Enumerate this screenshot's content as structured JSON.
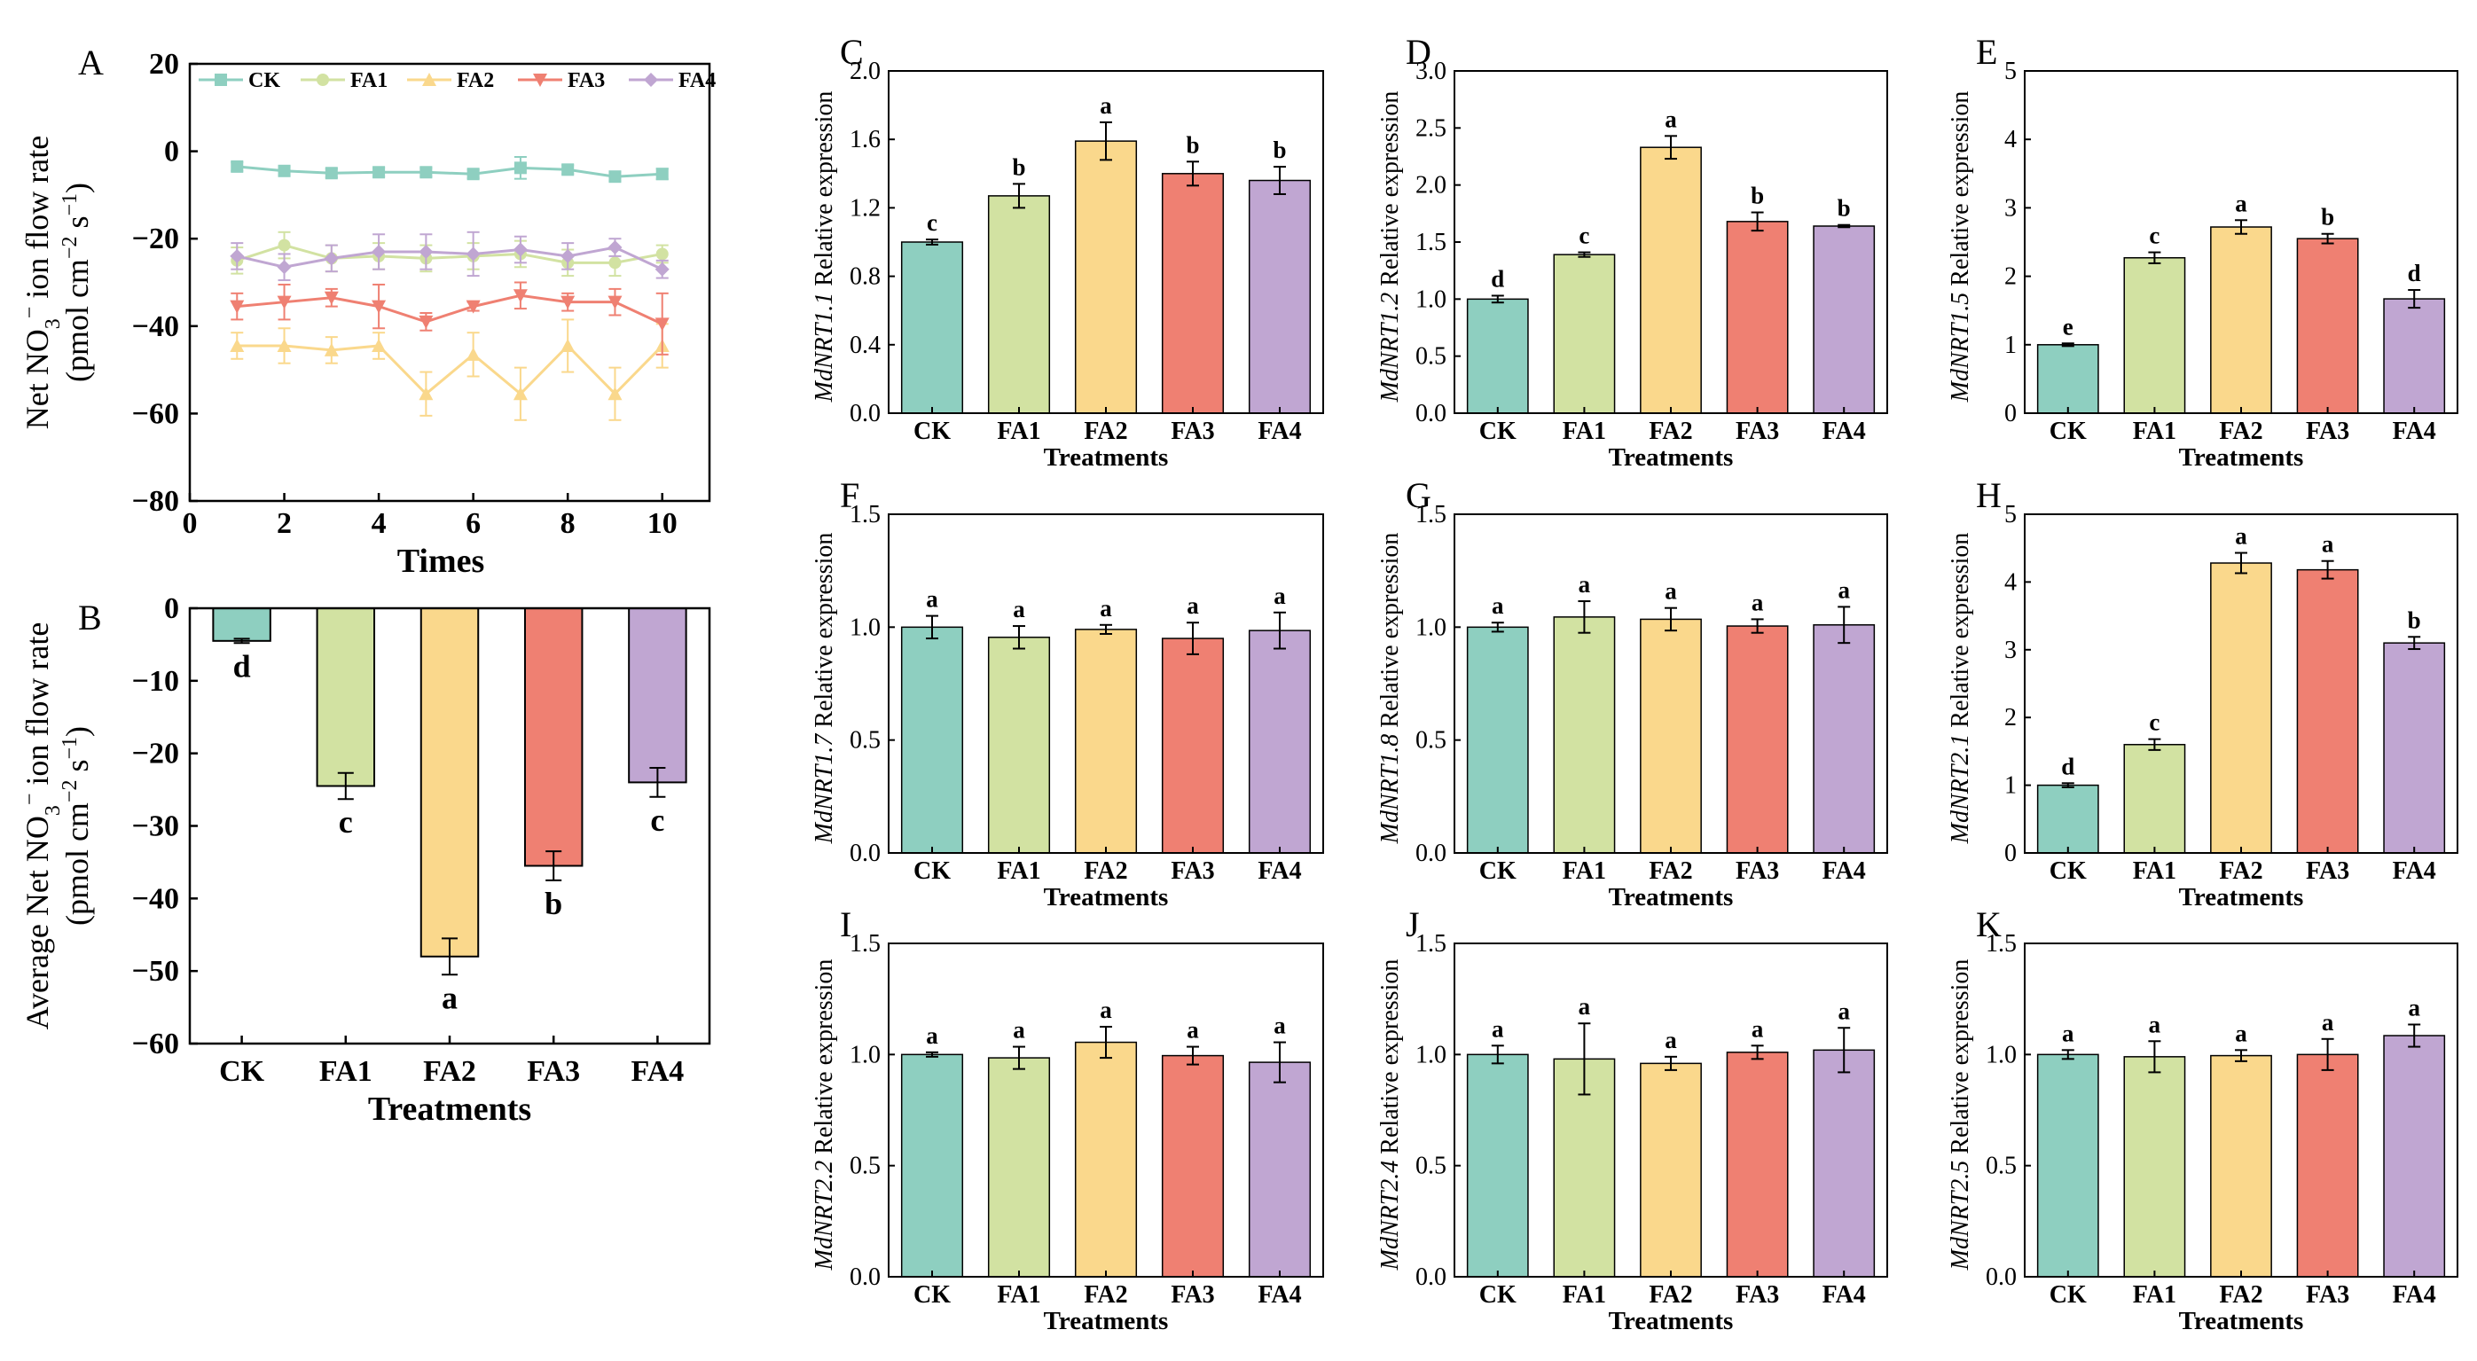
{
  "colors": {
    "CK": "#8ecfc0",
    "FA1": "#d2e2a2",
    "FA2": "#fad88c",
    "FA3": "#ef8072",
    "FA4": "#c0a6d2",
    "axis": "#000000"
  },
  "chart_data": [
    {
      "id": "A",
      "type": "line",
      "panel_label": "A",
      "xlabel": "Times",
      "ylabel_parts": {
        "l1": "Net NO",
        "sub": "3",
        "sup": "−",
        "l1_tail": " ion flow rate",
        "l2_pre": "(pmol cm",
        "sup2": "−2",
        "l2_mid": " s",
        "sup3": "−1",
        "l2_tail": ")"
      },
      "x": [
        1,
        2,
        3,
        4,
        5,
        6,
        7,
        8,
        9,
        10
      ],
      "xticks": [
        0,
        2,
        4,
        6,
        8,
        10
      ],
      "ylim": [
        -80,
        20
      ],
      "yticks": [
        20,
        0,
        -20,
        -40,
        -60,
        -80
      ],
      "series": [
        {
          "name": "CK",
          "values": [
            -3.5,
            -4.5,
            -5,
            -4.8,
            -4.8,
            -5.2,
            -3.8,
            -4.2,
            -5.8,
            -5.2
          ],
          "errors": [
            1,
            1,
            1,
            1,
            1,
            1,
            2.5,
            1,
            1,
            1.2
          ]
        },
        {
          "name": "FA1",
          "values": [
            -25,
            -21.5,
            -24.5,
            -24,
            -24.5,
            -24,
            -23.5,
            -25.5,
            -25.5,
            -23.5
          ],
          "errors": [
            3,
            3,
            3,
            3,
            3,
            3,
            3,
            3,
            3,
            2
          ]
        },
        {
          "name": "FA2",
          "values": [
            -44.5,
            -44.5,
            -45.5,
            -44.5,
            -55.5,
            -46.5,
            -55.5,
            -44.5,
            -55.5,
            -44.5
          ],
          "errors": [
            3,
            4,
            3,
            3,
            5,
            5,
            6,
            6,
            6,
            5
          ]
        },
        {
          "name": "FA3",
          "values": [
            -35.5,
            -34.5,
            -33.5,
            -35.5,
            -39,
            -35.5,
            -33,
            -34.5,
            -34.5,
            -39.5
          ],
          "errors": [
            3,
            4,
            2,
            5,
            2,
            1,
            3,
            2,
            3,
            7
          ]
        },
        {
          "name": "FA4",
          "values": [
            -24,
            -26.5,
            -24.5,
            -23,
            -23,
            -23.5,
            -22.5,
            -24,
            -22,
            -27
          ],
          "errors": [
            3,
            3,
            3,
            4,
            4,
            5,
            3,
            3,
            2,
            2
          ]
        }
      ]
    },
    {
      "id": "B",
      "type": "bar",
      "panel_label": "B",
      "xlabel": "Treatments",
      "ylabel_parts": {
        "l1": "Average Net NO",
        "sub": "3",
        "sup": "−",
        "l1_tail": " ion flow rate",
        "l2_pre": "(pmol cm",
        "sup2": "−2",
        "l2_mid": " s",
        "sup3": "−1",
        "l2_tail": ")"
      },
      "categories": [
        "CK",
        "FA1",
        "FA2",
        "FA3",
        "FA4"
      ],
      "values": [
        -4.5,
        -24.5,
        -48,
        -35.5,
        -24
      ],
      "errors": [
        0.3,
        1.8,
        2.5,
        2,
        2
      ],
      "letters": [
        "d",
        "c",
        "a",
        "b",
        "c"
      ],
      "ylim": [
        -60,
        0
      ],
      "yticks": [
        0,
        -10,
        -20,
        -30,
        -40,
        -50,
        -60
      ]
    },
    {
      "id": "C",
      "type": "bar",
      "panel_label": "C",
      "gene": "MdNRT1.1",
      "ylabel_suffix": " Relative expression",
      "xlabel": "Treatments",
      "categories": [
        "CK",
        "FA1",
        "FA2",
        "FA3",
        "FA4"
      ],
      "values": [
        1.0,
        1.27,
        1.59,
        1.4,
        1.36
      ],
      "errors": [
        0.015,
        0.07,
        0.11,
        0.07,
        0.08
      ],
      "letters": [
        "c",
        "b",
        "a",
        "b",
        "b"
      ],
      "ylim": [
        0,
        2.0
      ],
      "yticks": [
        "0.0",
        "0.4",
        "0.8",
        "1.2",
        "1.6",
        "2.0"
      ]
    },
    {
      "id": "D",
      "type": "bar",
      "panel_label": "D",
      "gene": "MdNRT1.2",
      "ylabel_suffix": " Relative expression",
      "xlabel": "Treatments",
      "categories": [
        "CK",
        "FA1",
        "FA2",
        "FA3",
        "FA4"
      ],
      "values": [
        1.0,
        1.39,
        2.33,
        1.68,
        1.64
      ],
      "errors": [
        0.03,
        0.02,
        0.1,
        0.08,
        0.01
      ],
      "letters": [
        "d",
        "c",
        "a",
        "b",
        "b"
      ],
      "ylim": [
        0,
        3.0
      ],
      "yticks": [
        "0.0",
        "0.5",
        "1.0",
        "1.5",
        "2.0",
        "2.5",
        "3.0"
      ]
    },
    {
      "id": "E",
      "type": "bar",
      "panel_label": "E",
      "gene": "MdNRT1.5",
      "ylabel_suffix": " Relative expression",
      "xlabel": "Treatments",
      "categories": [
        "CK",
        "FA1",
        "FA2",
        "FA3",
        "FA4"
      ],
      "values": [
        1.0,
        2.27,
        2.72,
        2.55,
        1.67
      ],
      "errors": [
        0.02,
        0.08,
        0.1,
        0.07,
        0.13
      ],
      "letters": [
        "e",
        "c",
        "a",
        "b",
        "d"
      ],
      "ylim": [
        0,
        5
      ],
      "yticks": [
        "0",
        "1",
        "2",
        "3",
        "4",
        "5"
      ]
    },
    {
      "id": "F",
      "type": "bar",
      "panel_label": "F",
      "gene": "MdNRT1.7",
      "ylabel_suffix": " Relative expression",
      "xlabel": "Treatments",
      "categories": [
        "CK",
        "FA1",
        "FA2",
        "FA3",
        "FA4"
      ],
      "values": [
        1.0,
        0.955,
        0.99,
        0.95,
        0.985
      ],
      "errors": [
        0.05,
        0.05,
        0.02,
        0.07,
        0.08
      ],
      "letters": [
        "a",
        "a",
        "a",
        "a",
        "a"
      ],
      "ylim": [
        0,
        1.5
      ],
      "yticks": [
        "0.0",
        "0.5",
        "1.0",
        "1.5"
      ]
    },
    {
      "id": "G",
      "type": "bar",
      "panel_label": "G",
      "gene": "MdNRT1.8",
      "ylabel_suffix": " Relative expression",
      "xlabel": "Treatments",
      "categories": [
        "CK",
        "FA1",
        "FA2",
        "FA3",
        "FA4"
      ],
      "values": [
        1.0,
        1.045,
        1.035,
        1.005,
        1.01
      ],
      "errors": [
        0.02,
        0.07,
        0.05,
        0.03,
        0.08
      ],
      "letters": [
        "a",
        "a",
        "a",
        "a",
        "a"
      ],
      "ylim": [
        0,
        1.5
      ],
      "yticks": [
        "0.0",
        "0.5",
        "1.0",
        "1.5"
      ]
    },
    {
      "id": "H",
      "type": "bar",
      "panel_label": "H",
      "gene": "MdNRT2.1",
      "ylabel_suffix": " Relative expression",
      "xlabel": "Treatments",
      "categories": [
        "CK",
        "FA1",
        "FA2",
        "FA3",
        "FA4"
      ],
      "values": [
        1.0,
        1.6,
        4.28,
        4.18,
        3.1
      ],
      "errors": [
        0.03,
        0.08,
        0.15,
        0.13,
        0.09
      ],
      "letters": [
        "d",
        "c",
        "a",
        "a",
        "b"
      ],
      "ylim": [
        0,
        5
      ],
      "yticks": [
        "0",
        "1",
        "2",
        "3",
        "4",
        "5"
      ]
    },
    {
      "id": "I",
      "type": "bar",
      "panel_label": "I",
      "gene": "MdNRT2.2",
      "ylabel_suffix": " Relative expression",
      "xlabel": "Treatments",
      "categories": [
        "CK",
        "FA1",
        "FA2",
        "FA3",
        "FA4"
      ],
      "values": [
        1.0,
        0.985,
        1.055,
        0.995,
        0.965
      ],
      "errors": [
        0.01,
        0.05,
        0.07,
        0.04,
        0.09
      ],
      "letters": [
        "a",
        "a",
        "a",
        "a",
        "a"
      ],
      "ylim": [
        0,
        1.5
      ],
      "yticks": [
        "0.0",
        "0.5",
        "1.0",
        "1.5"
      ]
    },
    {
      "id": "J",
      "type": "bar",
      "panel_label": "J",
      "gene": "MdNRT2.4",
      "ylabel_suffix": " Relative expression",
      "xlabel": "Treatments",
      "categories": [
        "CK",
        "FA1",
        "FA2",
        "FA3",
        "FA4"
      ],
      "values": [
        1.0,
        0.98,
        0.96,
        1.01,
        1.02
      ],
      "errors": [
        0.04,
        0.16,
        0.03,
        0.03,
        0.1
      ],
      "letters": [
        "a",
        "a",
        "a",
        "a",
        "a"
      ],
      "ylim": [
        0,
        1.5
      ],
      "yticks": [
        "0.0",
        "0.5",
        "1.0",
        "1.5"
      ]
    },
    {
      "id": "K",
      "type": "bar",
      "panel_label": "K",
      "gene": "MdNRT2.5",
      "ylabel_suffix": " Relative expression",
      "xlabel": "Treatments",
      "categories": [
        "CK",
        "FA1",
        "FA2",
        "FA3",
        "FA4"
      ],
      "values": [
        1.0,
        0.99,
        0.995,
        1.0,
        1.085
      ],
      "errors": [
        0.02,
        0.07,
        0.025,
        0.07,
        0.05
      ],
      "letters": [
        "a",
        "a",
        "a",
        "a",
        "a"
      ],
      "ylim": [
        0,
        1.5
      ],
      "yticks": [
        "0.0",
        "0.5",
        "1.0",
        "1.5"
      ]
    }
  ]
}
